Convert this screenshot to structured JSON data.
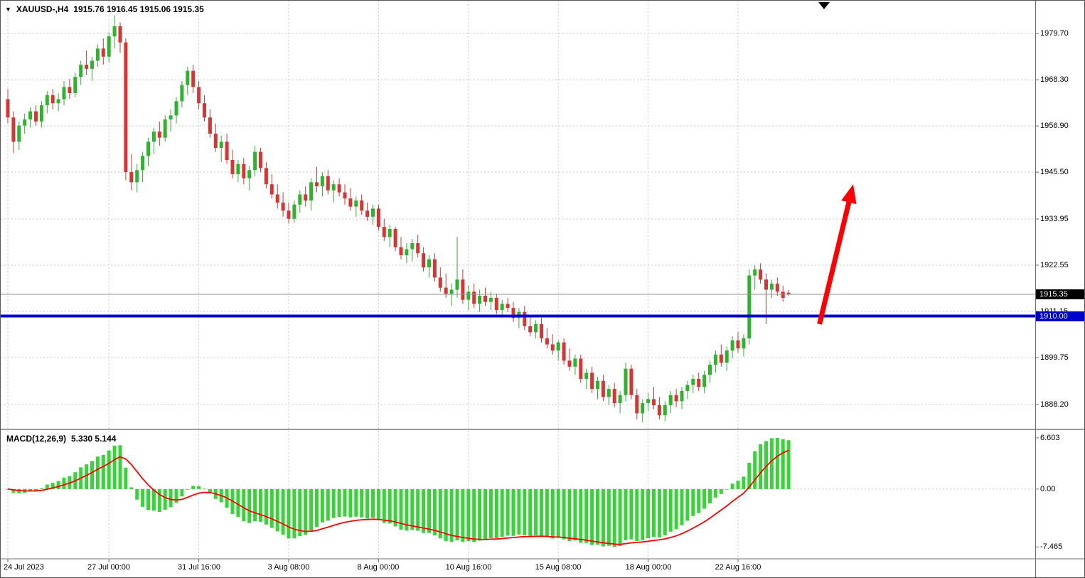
{
  "header": {
    "collapse_icon": "▼",
    "symbol_period": "XAUUSD-,H4",
    "ohlc": "1915.76 1916.45 1915.06 1915.35"
  },
  "colors": {
    "up": "#2db32d",
    "down": "#d73434",
    "macd_hist": "#37d437",
    "macd_signal": "#ff0000",
    "hline": "#0000cd",
    "grid": "#c9c9c9",
    "current_line": "#909090",
    "tag_current_bg": "#000000",
    "tag_hline_bg": "#0000cd",
    "axis_text": "#000000",
    "background": "#ffffff"
  },
  "chart_data": {
    "type": "candlestick",
    "symbol": "XAUUSD-",
    "timeframe": "H4",
    "legend_position": "none",
    "grid": "dashed",
    "main": {
      "price_axis_labels": [
        "1979.70",
        "1968.30",
        "1956.90",
        "1945.50",
        "1933.95",
        "1922.55",
        "1911.15",
        "1899.75",
        "1888.20"
      ],
      "y_max": 1987.8,
      "y_min": 1882.2,
      "current_price": 1915.35,
      "current_price_label": "1915.35",
      "hline": {
        "price": 1910.0,
        "label": "1910.00"
      },
      "arrow": {
        "from": {
          "bar": 144.5,
          "price": 1908.0
        },
        "to": {
          "bar": 150.5,
          "price": 1942.5
        }
      },
      "candles": [
        [
          1963.5,
          1966.0,
          1957.5,
          1959.0
        ],
        [
          1959.0,
          1960.5,
          1950.2,
          1953.0
        ],
        [
          1953.0,
          1958.0,
          1951.0,
          1957.0
        ],
        [
          1957.0,
          1960.0,
          1955.0,
          1958.5
        ],
        [
          1958.5,
          1961.5,
          1956.5,
          1960.5
        ],
        [
          1960.5,
          1962.0,
          1957.0,
          1958.0
        ],
        [
          1958.0,
          1963.0,
          1956.5,
          1962.0
        ],
        [
          1962.0,
          1965.5,
          1960.0,
          1964.5
        ],
        [
          1964.5,
          1966.0,
          1961.0,
          1962.5
        ],
        [
          1962.5,
          1965.0,
          1960.5,
          1963.5
        ],
        [
          1963.5,
          1968.0,
          1962.0,
          1966.5
        ],
        [
          1966.5,
          1968.5,
          1963.5,
          1965.0
        ],
        [
          1965.0,
          1970.0,
          1964.0,
          1969.0
        ],
        [
          1969.0,
          1973.0,
          1967.0,
          1972.0
        ],
        [
          1972.0,
          1975.5,
          1969.5,
          1971.0
        ],
        [
          1971.0,
          1974.0,
          1968.0,
          1973.0
        ],
        [
          1973.0,
          1977.0,
          1971.5,
          1976.0
        ],
        [
          1976.0,
          1978.5,
          1972.0,
          1974.0
        ],
        [
          1974.0,
          1980.0,
          1972.5,
          1979.0
        ],
        [
          1979.0,
          1984.2,
          1976.0,
          1981.5
        ],
        [
          1981.5,
          1982.5,
          1975.0,
          1977.5
        ],
        [
          1977.5,
          1978.5,
          1943.5,
          1945.5
        ],
        [
          1945.5,
          1950.0,
          1941.0,
          1943.0
        ],
        [
          1943.0,
          1947.5,
          1940.5,
          1946.0
        ],
        [
          1946.0,
          1950.5,
          1943.0,
          1949.5
        ],
        [
          1949.5,
          1954.0,
          1947.0,
          1953.0
        ],
        [
          1953.0,
          1956.5,
          1950.0,
          1955.5
        ],
        [
          1955.5,
          1958.0,
          1952.0,
          1954.0
        ],
        [
          1954.0,
          1959.5,
          1953.0,
          1958.5
        ],
        [
          1958.5,
          1961.0,
          1955.5,
          1959.5
        ],
        [
          1959.5,
          1964.0,
          1957.5,
          1963.0
        ],
        [
          1963.0,
          1968.0,
          1961.5,
          1967.0
        ],
        [
          1967.0,
          1971.5,
          1964.5,
          1970.5
        ],
        [
          1970.5,
          1972.0,
          1965.0,
          1966.5
        ],
        [
          1966.5,
          1968.0,
          1961.0,
          1962.5
        ],
        [
          1962.5,
          1964.5,
          1958.0,
          1959.0
        ],
        [
          1959.0,
          1961.0,
          1954.0,
          1955.0
        ],
        [
          1955.0,
          1957.5,
          1950.5,
          1951.5
        ],
        [
          1951.5,
          1954.5,
          1948.0,
          1953.0
        ],
        [
          1953.0,
          1955.0,
          1947.5,
          1948.5
        ],
        [
          1948.5,
          1951.0,
          1944.0,
          1945.0
        ],
        [
          1945.0,
          1948.5,
          1943.0,
          1947.5
        ],
        [
          1947.5,
          1949.0,
          1942.5,
          1944.0
        ],
        [
          1944.0,
          1947.0,
          1941.0,
          1946.0
        ],
        [
          1946.0,
          1952.0,
          1944.5,
          1950.5
        ],
        [
          1950.5,
          1951.5,
          1945.5,
          1946.5
        ],
        [
          1946.5,
          1948.0,
          1941.5,
          1942.5
        ],
        [
          1942.5,
          1945.0,
          1939.0,
          1940.0
        ],
        [
          1940.0,
          1942.5,
          1936.5,
          1938.0
        ],
        [
          1938.0,
          1940.5,
          1934.5,
          1936.0
        ],
        [
          1936.0,
          1938.0,
          1932.8,
          1934.0
        ],
        [
          1934.0,
          1938.5,
          1933.0,
          1937.5
        ],
        [
          1937.5,
          1941.0,
          1935.5,
          1940.0
        ],
        [
          1940.0,
          1942.0,
          1937.0,
          1938.5
        ],
        [
          1938.5,
          1944.0,
          1936.0,
          1943.0
        ],
        [
          1943.0,
          1946.8,
          1940.5,
          1942.0
        ],
        [
          1942.0,
          1945.5,
          1939.5,
          1944.5
        ],
        [
          1944.5,
          1946.0,
          1940.0,
          1941.0
        ],
        [
          1941.0,
          1943.5,
          1938.0,
          1942.5
        ],
        [
          1942.5,
          1944.0,
          1939.5,
          1940.5
        ],
        [
          1940.5,
          1942.5,
          1937.5,
          1939.0
        ],
        [
          1939.0,
          1941.5,
          1936.0,
          1937.0
        ],
        [
          1937.0,
          1939.5,
          1934.5,
          1938.5
        ],
        [
          1938.5,
          1940.0,
          1935.0,
          1936.0
        ],
        [
          1936.0,
          1938.0,
          1933.5,
          1934.5
        ],
        [
          1934.5,
          1937.5,
          1932.5,
          1936.5
        ],
        [
          1936.5,
          1937.5,
          1931.0,
          1932.0
        ],
        [
          1932.0,
          1934.0,
          1928.5,
          1929.5
        ],
        [
          1929.5,
          1932.5,
          1927.0,
          1931.5
        ],
        [
          1931.5,
          1932.0,
          1926.0,
          1927.0
        ],
        [
          1927.0,
          1929.5,
          1924.0,
          1925.0
        ],
        [
          1925.0,
          1928.0,
          1923.0,
          1926.5
        ],
        [
          1926.5,
          1929.0,
          1923.5,
          1928.0
        ],
        [
          1928.0,
          1930.0,
          1924.5,
          1925.5
        ],
        [
          1925.5,
          1927.0,
          1921.0,
          1922.0
        ],
        [
          1922.0,
          1925.0,
          1919.5,
          1924.0
        ],
        [
          1924.0,
          1925.5,
          1918.5,
          1919.5
        ],
        [
          1919.5,
          1922.0,
          1916.0,
          1917.0
        ],
        [
          1917.0,
          1920.5,
          1914.5,
          1915.5
        ],
        [
          1915.5,
          1918.0,
          1912.5,
          1916.5
        ],
        [
          1916.5,
          1929.5,
          1914.5,
          1919.0
        ],
        [
          1919.0,
          1921.5,
          1913.0,
          1914.0
        ],
        [
          1914.0,
          1917.5,
          1911.5,
          1916.0
        ],
        [
          1916.0,
          1918.0,
          1912.0,
          1913.0
        ],
        [
          1913.0,
          1916.5,
          1911.0,
          1915.0
        ],
        [
          1915.0,
          1917.0,
          1912.5,
          1913.5
        ],
        [
          1913.5,
          1916.0,
          1911.5,
          1914.5
        ],
        [
          1914.5,
          1915.5,
          1910.5,
          1911.5
        ],
        [
          1911.5,
          1914.0,
          1910.0,
          1913.0
        ],
        [
          1913.0,
          1914.5,
          1911.0,
          1912.0
        ],
        [
          1912.0,
          1913.5,
          1908.5,
          1909.5
        ],
        [
          1909.5,
          1912.0,
          1907.0,
          1911.0
        ],
        [
          1911.0,
          1912.5,
          1906.5,
          1907.5
        ],
        [
          1907.5,
          1910.0,
          1905.0,
          1906.0
        ],
        [
          1906.0,
          1909.0,
          1904.5,
          1908.0
        ],
        [
          1908.0,
          1909.5,
          1903.5,
          1904.5
        ],
        [
          1904.5,
          1907.0,
          1902.0,
          1903.0
        ],
        [
          1903.0,
          1905.5,
          1900.5,
          1901.5
        ],
        [
          1901.5,
          1904.0,
          1899.0,
          1903.5
        ],
        [
          1903.5,
          1904.5,
          1898.0,
          1899.0
        ],
        [
          1899.0,
          1902.0,
          1896.5,
          1897.5
        ],
        [
          1897.5,
          1900.5,
          1895.5,
          1899.5
        ],
        [
          1899.5,
          1900.5,
          1893.5,
          1894.5
        ],
        [
          1894.5,
          1897.0,
          1892.0,
          1896.0
        ],
        [
          1896.0,
          1897.5,
          1891.0,
          1892.0
        ],
        [
          1892.0,
          1895.0,
          1889.5,
          1894.0
        ],
        [
          1894.0,
          1895.5,
          1889.0,
          1890.0
        ],
        [
          1890.0,
          1893.0,
          1888.0,
          1892.0
        ],
        [
          1892.0,
          1893.5,
          1887.5,
          1888.5
        ],
        [
          1888.5,
          1891.5,
          1886.0,
          1890.5
        ],
        [
          1890.5,
          1898.5,
          1889.0,
          1897.0
        ],
        [
          1897.0,
          1898.0,
          1889.5,
          1890.5
        ],
        [
          1890.5,
          1892.0,
          1884.5,
          1886.0
        ],
        [
          1886.0,
          1889.5,
          1883.8,
          1888.5
        ],
        [
          1888.5,
          1891.0,
          1886.5,
          1889.5
        ],
        [
          1889.5,
          1892.5,
          1887.0,
          1888.0
        ],
        [
          1888.0,
          1890.0,
          1884.5,
          1885.5
        ],
        [
          1885.5,
          1889.0,
          1884.0,
          1888.0
        ],
        [
          1888.0,
          1891.5,
          1886.0,
          1890.5
        ],
        [
          1890.5,
          1892.0,
          1887.5,
          1889.0
        ],
        [
          1889.0,
          1892.5,
          1887.0,
          1891.5
        ],
        [
          1891.5,
          1894.0,
          1889.5,
          1893.0
        ],
        [
          1893.0,
          1895.5,
          1891.0,
          1894.5
        ],
        [
          1894.5,
          1896.0,
          1891.5,
          1892.5
        ],
        [
          1892.5,
          1896.5,
          1891.0,
          1895.5
        ],
        [
          1895.5,
          1899.0,
          1893.5,
          1898.0
        ],
        [
          1898.0,
          1901.5,
          1896.0,
          1900.5
        ],
        [
          1900.5,
          1903.0,
          1897.5,
          1898.5
        ],
        [
          1898.5,
          1902.5,
          1896.5,
          1901.5
        ],
        [
          1901.5,
          1905.0,
          1899.5,
          1904.0
        ],
        [
          1904.0,
          1906.0,
          1901.0,
          1902.0
        ],
        [
          1902.0,
          1905.5,
          1900.0,
          1904.5
        ],
        [
          1904.5,
          1921.5,
          1903.0,
          1920.0
        ],
        [
          1920.0,
          1922.5,
          1916.5,
          1921.5
        ],
        [
          1921.5,
          1923.0,
          1918.0,
          1919.0
        ],
        [
          1919.0,
          1920.5,
          1908.0,
          1916.5
        ],
        [
          1916.5,
          1919.0,
          1914.5,
          1918.0
        ],
        [
          1918.0,
          1919.5,
          1915.0,
          1916.0
        ],
        [
          1916.0,
          1917.5,
          1913.5,
          1914.5
        ],
        [
          1915.76,
          1916.45,
          1915.06,
          1915.35
        ]
      ]
    },
    "x_ticks": [
      {
        "bar": 0,
        "label": "24 Jul 2023"
      },
      {
        "bar": 18,
        "label": "27 Jul 00:00"
      },
      {
        "bar": 34,
        "label": "31 Jul 16:00"
      },
      {
        "bar": 50,
        "label": "3 Aug 08:00"
      },
      {
        "bar": 66,
        "label": "8 Aug 00:00"
      },
      {
        "bar": 82,
        "label": "10 Aug 16:00"
      },
      {
        "bar": 98,
        "label": "15 Aug 08:00"
      },
      {
        "bar": 114,
        "label": "18 Aug 00:00"
      },
      {
        "bar": 130,
        "label": "22 Aug 16:00"
      }
    ],
    "macd": {
      "label": "MACD(12,26,9)",
      "values_text": "5.330 5.144",
      "macd_value": 5.33,
      "signal_value": 5.144,
      "fast": 12,
      "slow": 26,
      "signal": 9,
      "axis_labels": [
        "6.603",
        "0.00",
        "-7.465"
      ],
      "axis_max": 6.603,
      "axis_min": -7.465,
      "v_max": 7.6,
      "v_min": -8.9
    }
  }
}
